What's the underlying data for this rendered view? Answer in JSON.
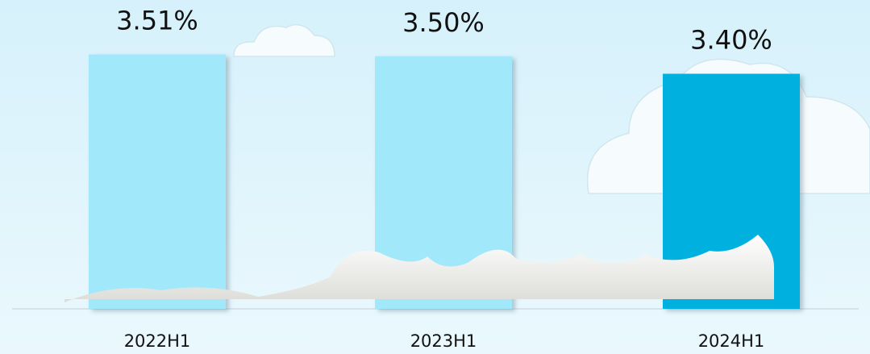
{
  "chart_data": {
    "type": "bar",
    "categories": [
      "2022H1",
      "2023H1",
      "2024H1"
    ],
    "values": [
      3.51,
      3.5,
      3.4
    ],
    "value_labels": [
      "3.51%",
      "3.50%",
      "3.40%"
    ],
    "colors": [
      "#a0e8fa",
      "#a0e8fa",
      "#00b0de"
    ],
    "ylim": [
      2.06,
      3.6
    ]
  }
}
